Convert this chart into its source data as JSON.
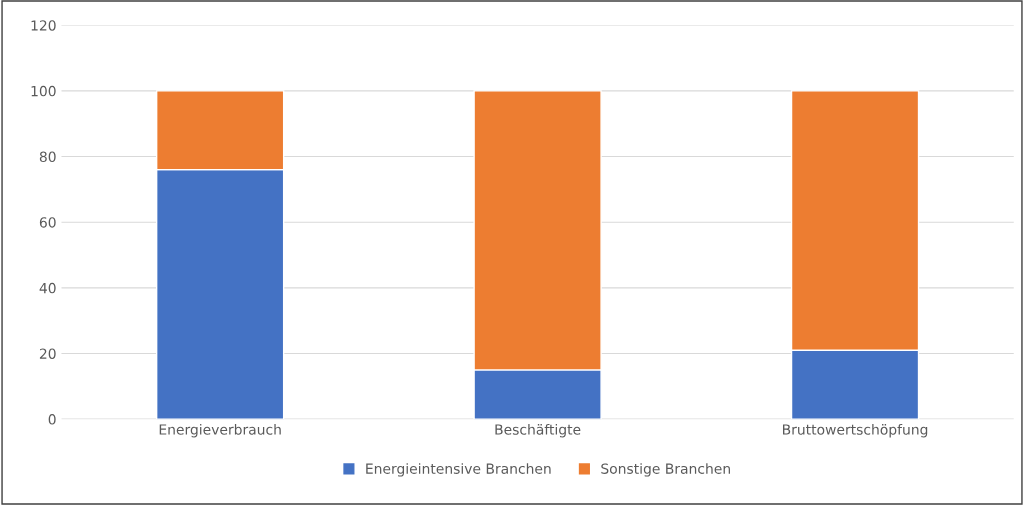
{
  "chart_data": {
    "type": "bar",
    "stacked": true,
    "categories": [
      "Energieverbrauch",
      "Beschäftigte",
      "Bruttowertschöpfung"
    ],
    "series": [
      {
        "name": "Energieintensive Branchen",
        "color": "#4472c4",
        "values": [
          76,
          15,
          21
        ]
      },
      {
        "name": "Sonstige Branchen",
        "color": "#ed7d31",
        "values": [
          24,
          85,
          79
        ]
      }
    ],
    "ylim": [
      0,
      120
    ],
    "yticks": [
      0,
      20,
      40,
      60,
      80,
      100,
      120
    ],
    "grid": "y",
    "legend": "bottom"
  }
}
